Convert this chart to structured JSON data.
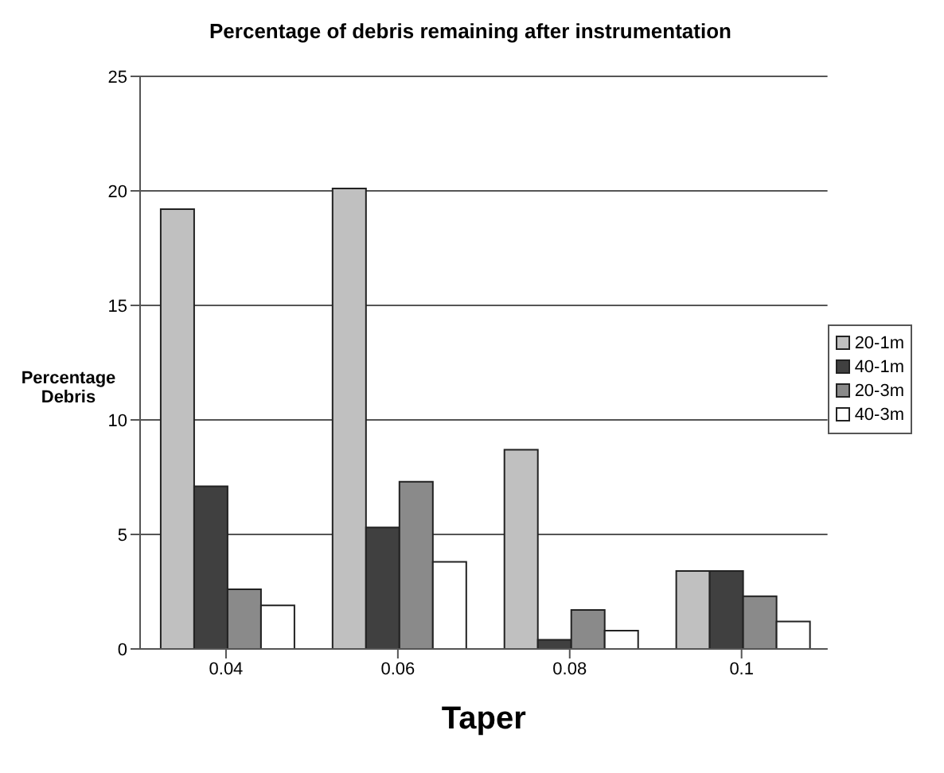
{
  "chart_data": {
    "type": "bar",
    "title": "Percentage of debris remaining after instrumentation",
    "xlabel": "Taper",
    "ylabel": "Percentage Debris",
    "categories": [
      "0.04",
      "0.06",
      "0.08",
      "0.1"
    ],
    "series": [
      {
        "name": "20-1m",
        "color": "#c0c0c0",
        "values": [
          19.2,
          20.1,
          8.7,
          3.4
        ]
      },
      {
        "name": "40-1m",
        "color": "#404040",
        "values": [
          7.1,
          5.3,
          0.4,
          3.4
        ]
      },
      {
        "name": "20-3m",
        "color": "#8a8a8a",
        "values": [
          2.6,
          7.3,
          1.7,
          2.3
        ]
      },
      {
        "name": "40-3m",
        "color": "#ffffff",
        "values": [
          1.9,
          3.8,
          0.8,
          1.2
        ]
      }
    ],
    "ylim": [
      0,
      25
    ],
    "yticks": [
      0,
      5,
      10,
      15,
      20,
      25
    ],
    "grid": "y",
    "legend": "right"
  }
}
